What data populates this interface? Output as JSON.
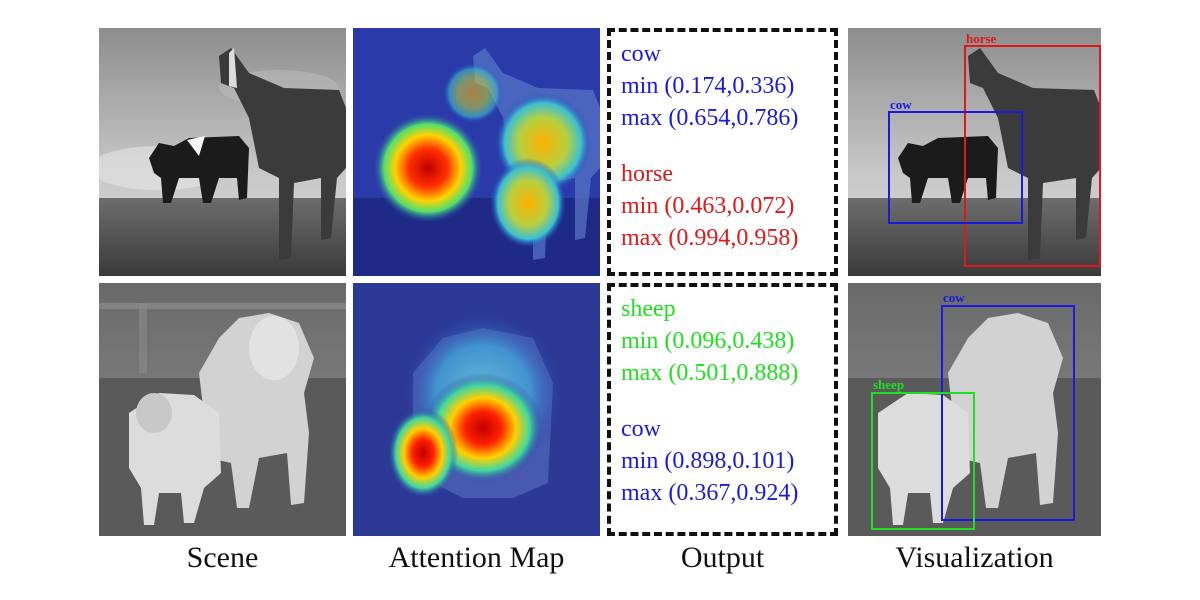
{
  "column_labels": [
    "Scene",
    "Attention Map",
    "Output",
    "Visualization"
  ],
  "colors": {
    "cow": "#1a1adf",
    "horse": "#e01818",
    "sheep": "#1fe01f"
  },
  "rows": [
    {
      "detections": [
        {
          "label": "cow",
          "color": "#1a1adf",
          "min": "min (0.174,0.336)",
          "max": "max (0.654,0.786)"
        },
        {
          "label": "horse",
          "color": "#e01818",
          "min": "min (0.463,0.072)",
          "max": "max (0.994,0.958)"
        }
      ]
    },
    {
      "detections": [
        {
          "label": "sheep",
          "color": "#1fe01f",
          "min": "min (0.096,0.438)",
          "max": "max (0.501,0.888)"
        },
        {
          "label": "cow",
          "color": "#1a1adf",
          "min": "min (0.898,0.101)",
          "max": "max (0.367,0.924)"
        }
      ]
    }
  ]
}
